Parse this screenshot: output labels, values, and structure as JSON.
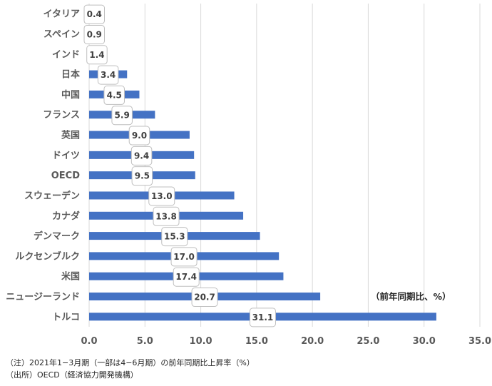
{
  "chart_data": {
    "type": "bar",
    "orientation": "horizontal",
    "categories": [
      "イタリア",
      "スペイン",
      "インド",
      "日本",
      "中国",
      "フランス",
      "英国",
      "ドイツ",
      "OECD",
      "スウェーデン",
      "カナダ",
      "デンマーク",
      "ルクセンブルク",
      "米国",
      "ニュージーランド",
      "トルコ"
    ],
    "values": [
      0.4,
      0.9,
      1.4,
      3.4,
      4.5,
      5.9,
      9.0,
      9.4,
      9.5,
      13.0,
      13.8,
      15.3,
      17.0,
      17.4,
      20.7,
      31.1
    ],
    "data_labels": [
      "0.4",
      "0.9",
      "1.4",
      "3.4",
      "4.5",
      "5.9",
      "9.0",
      "9.4",
      "9.5",
      "13.0",
      "13.8",
      "15.3",
      "17.0",
      "17.4",
      "20.7",
      "31.1"
    ],
    "xlim": [
      0,
      35
    ],
    "x_ticks": [
      "0.0",
      "5.0",
      "10.0",
      "15.0",
      "20.0",
      "25.0",
      "30.0",
      "35.0"
    ],
    "x_tick_values": [
      0,
      5,
      10,
      15,
      20,
      25,
      30,
      35
    ],
    "grid": true,
    "bar_color": "#4472C4",
    "unit_label": "（前年同期比、%）",
    "notes": [
      "（注）2021年1−3月期（一部は4−6月期）の前年同期比上昇率（%）",
      "（出所）OECD（経済協力開発機構）"
    ]
  }
}
